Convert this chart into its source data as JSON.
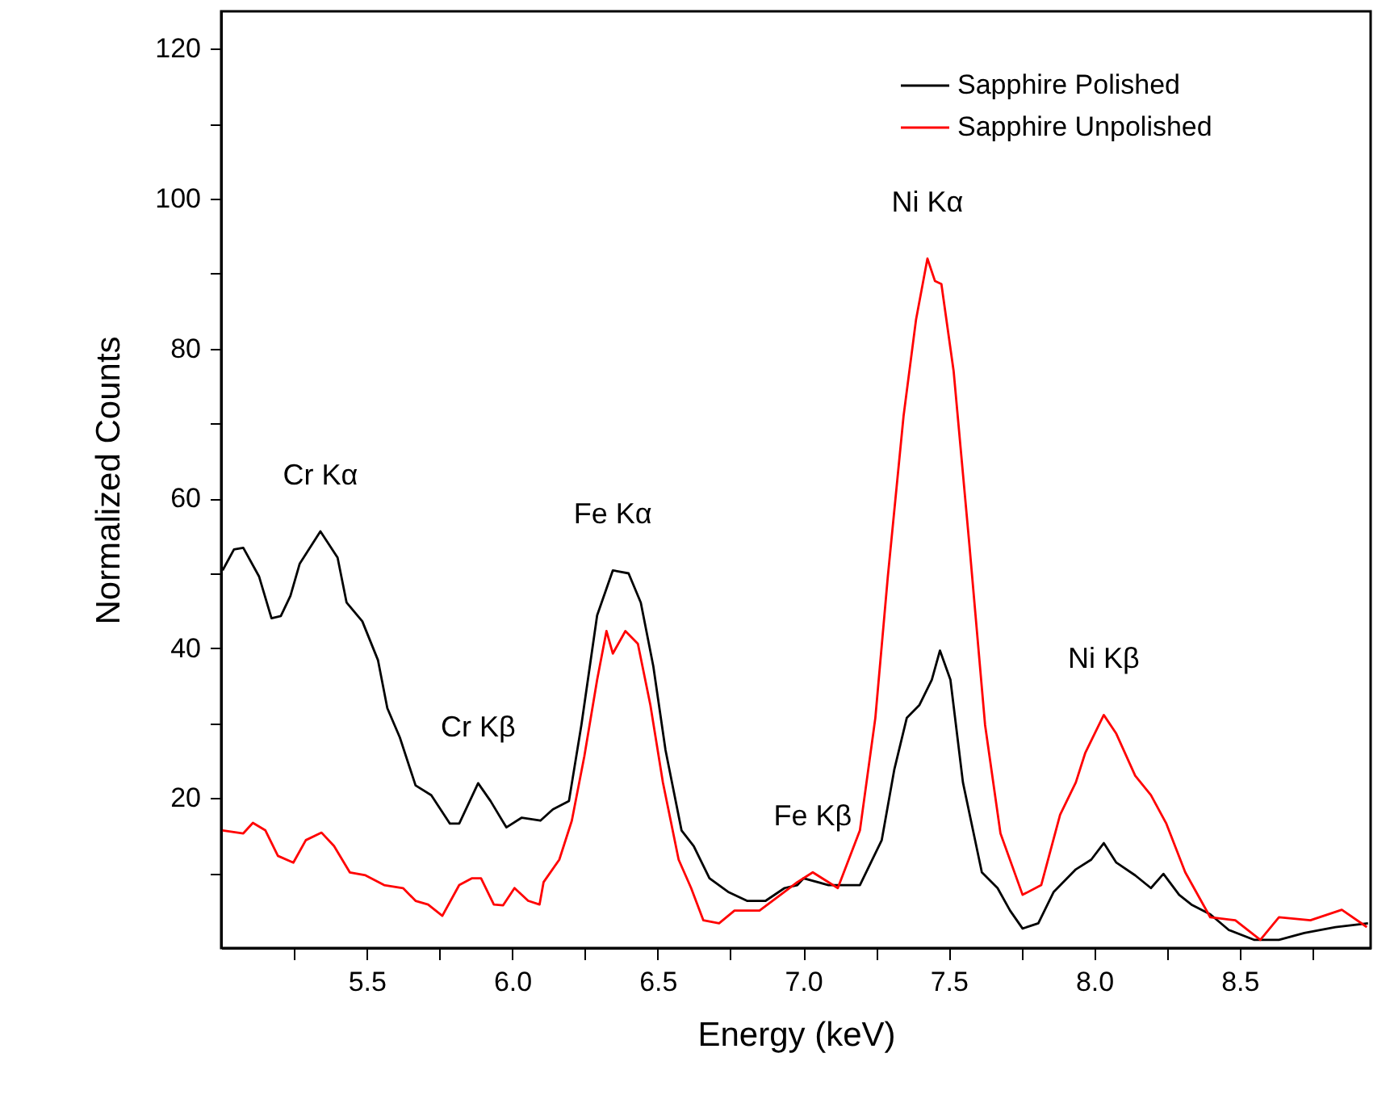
{
  "chart_data": {
    "type": "line",
    "xlabel": "Energy (keV)",
    "ylabel": "Normalized Counts",
    "xlim": [
      5.0,
      8.95
    ],
    "ylim": [
      0,
      125
    ],
    "xticks": [
      {
        "value": 5.25,
        "label": null
      },
      5.5,
      {
        "value": 5.75,
        "label": null
      },
      {
        "value": 6.0,
        "label": "6.0"
      },
      {
        "value": 6.25,
        "label": null
      },
      6.5,
      {
        "value": 6.75,
        "label": null
      },
      {
        "value": 7.0,
        "label": "7.0"
      },
      {
        "value": 7.25,
        "label": null
      },
      7.5,
      {
        "value": 7.75,
        "label": null
      },
      {
        "value": 8.0,
        "label": "8.0"
      },
      {
        "value": 8.25,
        "label": null
      },
      8.5,
      {
        "value": 8.75,
        "label": null
      }
    ],
    "yticks": [
      {
        "value": 10,
        "label": null
      },
      20,
      {
        "value": 30,
        "label": null
      },
      40,
      {
        "value": 50,
        "label": null
      },
      60,
      {
        "value": 70,
        "label": null
      },
      80,
      {
        "value": 90,
        "label": null
      },
      100,
      {
        "value": 110,
        "label": null
      },
      120
    ],
    "grid": false,
    "legend": "top right",
    "marker": "none",
    "line_style": "solid",
    "series": [
      {
        "name": "Sapphire Polished",
        "color": "#000000",
        "x": [
          5.005,
          5.044,
          5.076,
          5.13,
          5.173,
          5.205,
          5.238,
          5.27,
          5.341,
          5.4,
          5.431,
          5.485,
          5.539,
          5.571,
          5.614,
          5.668,
          5.722,
          5.786,
          5.818,
          5.883,
          5.926,
          5.98,
          6.033,
          6.097,
          6.14,
          6.195,
          6.238,
          6.292,
          6.346,
          6.4,
          6.442,
          6.485,
          6.527,
          6.582,
          6.624,
          6.678,
          6.742,
          6.807,
          6.871,
          6.936,
          6.98,
          7.001,
          7.087,
          7.195,
          7.27,
          7.313,
          7.356,
          7.399,
          7.442,
          7.47,
          7.506,
          7.549,
          7.614,
          7.668,
          7.711,
          7.754,
          7.808,
          7.861,
          7.937,
          7.99,
          8.033,
          8.076,
          8.141,
          8.195,
          8.238,
          8.292,
          8.334,
          8.399,
          8.463,
          8.549,
          8.635,
          8.722,
          8.829,
          8.941
        ],
        "values": [
          50.4,
          53.2,
          53.4,
          49.6,
          44.0,
          44.3,
          47.0,
          51.3,
          55.6,
          52.1,
          46.1,
          43.6,
          38.4,
          32.0,
          28.1,
          21.7,
          20.4,
          16.6,
          16.6,
          22.0,
          19.6,
          16.1,
          17.4,
          17.0,
          18.5,
          19.6,
          29.8,
          44.4,
          50.4,
          50.0,
          46.1,
          37.6,
          26.4,
          15.7,
          13.6,
          9.3,
          7.5,
          6.3,
          6.3,
          8.0,
          8.4,
          9.3,
          8.4,
          8.4,
          14.4,
          23.8,
          30.7,
          32.4,
          35.8,
          39.7,
          35.8,
          22.1,
          10.1,
          8.0,
          5.0,
          2.6,
          3.3,
          7.5,
          10.5,
          11.8,
          14.0,
          11.4,
          9.7,
          8.0,
          9.9,
          7.1,
          5.8,
          4.5,
          2.4,
          1.1,
          1.1,
          2.0,
          2.8,
          3.3
        ]
      },
      {
        "name": "Sapphire Unpolished",
        "color": "#ff0000",
        "x": [
          5.005,
          5.076,
          5.109,
          5.152,
          5.195,
          5.248,
          5.291,
          5.345,
          5.388,
          5.442,
          5.496,
          5.56,
          5.625,
          5.668,
          5.711,
          5.76,
          5.818,
          5.861,
          5.893,
          5.937,
          5.969,
          6.008,
          6.055,
          6.094,
          6.108,
          6.162,
          6.205,
          6.248,
          6.292,
          6.324,
          6.346,
          6.389,
          6.432,
          6.475,
          6.518,
          6.572,
          6.615,
          6.657,
          6.711,
          6.764,
          6.85,
          6.936,
          6.98,
          7.033,
          7.119,
          7.195,
          7.248,
          7.291,
          7.345,
          7.388,
          7.427,
          7.453,
          7.475,
          7.517,
          7.571,
          7.625,
          7.678,
          7.754,
          7.818,
          7.883,
          7.937,
          7.969,
          8.033,
          8.076,
          8.141,
          8.195,
          8.248,
          8.313,
          8.399,
          8.485,
          8.571,
          8.635,
          8.743,
          8.851,
          8.937
        ],
        "values": [
          15.7,
          15.3,
          16.7,
          15.7,
          12.3,
          11.4,
          14.4,
          15.4,
          13.6,
          10.1,
          9.7,
          8.4,
          8.0,
          6.3,
          5.8,
          4.3,
          8.4,
          9.3,
          9.3,
          5.8,
          5.7,
          8.0,
          6.3,
          5.8,
          8.8,
          11.8,
          17.0,
          25.6,
          35.8,
          42.3,
          39.3,
          42.3,
          40.6,
          32.4,
          22.1,
          11.8,
          8.0,
          3.7,
          3.3,
          5.0,
          5.0,
          7.5,
          8.8,
          10.1,
          8.0,
          15.7,
          30.7,
          49.6,
          71.0,
          83.9,
          92.0,
          89.0,
          88.6,
          77.0,
          53.9,
          29.8,
          15.3,
          7.1,
          8.4,
          17.8,
          22.1,
          26.0,
          31.1,
          28.6,
          23.0,
          20.4,
          16.6,
          10.1,
          4.1,
          3.7,
          1.1,
          4.1,
          3.7,
          5.1,
          2.8
        ]
      }
    ],
    "annotations": [
      {
        "text": "Cr Kα",
        "x": 5.341,
        "y": 55.6
      },
      {
        "text": "Cr Kβ",
        "x": 5.883,
        "y": 22.0
      },
      {
        "text": "Fe Kα",
        "x": 6.346,
        "y": 50.4
      },
      {
        "text": "Fe Kβ",
        "x": 7.033,
        "y": 10.1
      },
      {
        "text": "Ni Kα",
        "x": 7.427,
        "y": 92.0
      },
      {
        "text": "Ni Kβ",
        "x": 8.033,
        "y": 31.1
      }
    ]
  }
}
